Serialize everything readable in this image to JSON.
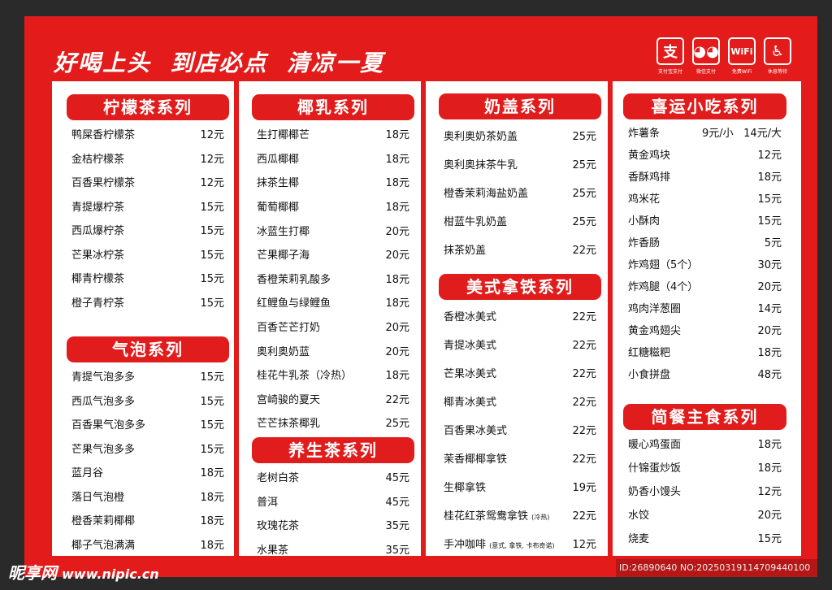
{
  "header": {
    "title": "好喝上头  到店必点  清凉一夏"
  },
  "services": [
    {
      "icon": "alipay-icon",
      "glyph": "支",
      "label": "支付宝支付"
    },
    {
      "icon": "wechat-icon",
      "glyph": "◕◕",
      "label": "微信支付"
    },
    {
      "icon": "wifi-icon",
      "glyph": "WiFi",
      "label": "免费WiFi"
    },
    {
      "icon": "rest-area-icon",
      "glyph": "♿",
      "label": "休息等待"
    }
  ],
  "sections": [
    {
      "title": "柠檬茶系列",
      "items": [
        [
          "鸭屎香柠檬茶",
          "12元"
        ],
        [
          "金桔柠檬茶",
          "12元"
        ],
        [
          "百香果柠檬茶",
          "12元"
        ],
        [
          "青提爆柠茶",
          "15元"
        ],
        [
          "西瓜爆柠茶",
          "15元"
        ],
        [
          "芒果冰柠茶",
          "15元"
        ],
        [
          "椰青柠檬茶",
          "15元"
        ],
        [
          "橙子青柠茶",
          "15元"
        ]
      ]
    },
    {
      "title": "气泡系列",
      "items": [
        [
          "青提气泡多多",
          "15元"
        ],
        [
          "西瓜气泡多多",
          "15元"
        ],
        [
          "百香果气泡多多",
          "15元"
        ],
        [
          "芒果气泡多多",
          "15元"
        ],
        [
          "蓝月谷",
          "18元"
        ],
        [
          "落日气泡橙",
          "18元"
        ],
        [
          "橙香茉莉椰椰",
          "18元"
        ],
        [
          "椰子气泡满满",
          "18元"
        ]
      ]
    },
    {
      "title": "椰乳系列",
      "items": [
        [
          "生打椰椰芒",
          "18元"
        ],
        [
          "西瓜椰椰",
          "18元"
        ],
        [
          "抹茶生椰",
          "18元"
        ],
        [
          "葡萄椰椰",
          "18元"
        ],
        [
          "冰蓝生打椰",
          "20元"
        ],
        [
          "芒果椰子海",
          "20元"
        ],
        [
          "香橙茉莉乳酸多",
          "18元"
        ],
        [
          "红鲤鱼与绿鲤鱼",
          "18元"
        ],
        [
          "百香芒芒打奶",
          "20元"
        ],
        [
          "奥利奥奶蓝",
          "20元"
        ],
        [
          "桂花牛乳茶（冷热）",
          "18元"
        ],
        [
          "宫崎骏的夏天",
          "22元"
        ],
        [
          "芒芒抹茶椰乳",
          "25元"
        ]
      ]
    },
    {
      "title": "养生茶系列",
      "items": [
        [
          "老树白茶",
          "45元"
        ],
        [
          "普洱",
          "45元"
        ],
        [
          "玫瑰花茶",
          "35元"
        ],
        [
          "水果茶",
          "35元"
        ]
      ]
    },
    {
      "title": "奶盖系列",
      "items": [
        [
          "奥利奥奶茶奶盖",
          "25元"
        ],
        [
          "奥利奥抹茶牛乳",
          "25元"
        ],
        [
          "橙香茉莉海盐奶盖",
          "25元"
        ],
        [
          "柑蓝牛乳奶盖",
          "25元"
        ],
        [
          "抹茶奶盖",
          "22元"
        ]
      ]
    },
    {
      "title": "美式拿铁系列",
      "items": [
        [
          "香橙冰美式",
          "22元"
        ],
        [
          "青提冰美式",
          "22元"
        ],
        [
          "芒果冰美式",
          "22元"
        ],
        [
          "椰青冰美式",
          "22元"
        ],
        [
          "百香果冰美式",
          "22元"
        ],
        [
          "茉香椰椰拿铁",
          "22元"
        ],
        [
          "生椰拿铁",
          "19元"
        ],
        [
          "桂花红茶鸳鸯拿铁",
          "22元",
          "(冷热)"
        ],
        [
          "手冲咖啡",
          "12元",
          "(意式, 拿铁, 卡布奇诺)"
        ]
      ]
    },
    {
      "title": "喜运小吃系列",
      "items": [
        [
          "炸薯条",
          "9元/小   14元/大"
        ],
        [
          "黄金鸡块",
          "12元"
        ],
        [
          "香酥鸡排",
          "18元"
        ],
        [
          "鸡米花",
          "15元"
        ],
        [
          "小酥肉",
          "15元"
        ],
        [
          "炸香肠",
          "5元"
        ],
        [
          "炸鸡翅（5个）",
          "30元"
        ],
        [
          "炸鸡腿（4个）",
          "20元"
        ],
        [
          "鸡肉洋葱圈",
          "14元"
        ],
        [
          "黄金鸡翅尖",
          "20元"
        ],
        [
          "红糖糍粑",
          "18元"
        ],
        [
          "小食拼盘",
          "48元"
        ]
      ]
    },
    {
      "title": "简餐主食系列",
      "items": [
        [
          "暖心鸡蛋面",
          "18元"
        ],
        [
          "什锦蛋炒饭",
          "18元"
        ],
        [
          "奶香小馒头",
          "12元"
        ],
        [
          "水饺",
          "20元"
        ],
        [
          "烧麦",
          "15元"
        ]
      ]
    }
  ],
  "watermark": {
    "logo": "昵享网",
    "site": "www.nipic.cn",
    "id": "ID:26890640 NO:20250319114709440100"
  },
  "colors": {
    "accent": "#e31b1b",
    "background": "#2a2a2a"
  }
}
